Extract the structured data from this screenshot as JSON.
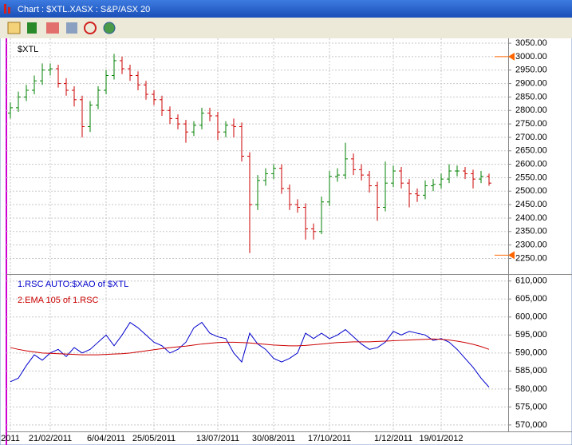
{
  "window": {
    "title": "Chart : $XTL.XASX : S&P/ASX 20"
  },
  "chart_data": [
    {
      "type": "ohlc",
      "title": "$XTL",
      "categories": [
        "2011",
        null,
        null,
        null,
        null,
        "21/02/2011",
        null,
        null,
        null,
        null,
        null,
        null,
        "6/04/2011",
        null,
        null,
        null,
        null,
        null,
        "25/05/2011",
        null,
        null,
        null,
        null,
        null,
        null,
        null,
        "13/07/2011",
        null,
        null,
        null,
        null,
        null,
        null,
        "30/08/2011",
        null,
        null,
        null,
        null,
        null,
        null,
        "17/10/2011",
        null,
        null,
        null,
        null,
        null,
        null,
        null,
        "1/12/2011",
        null,
        null,
        null,
        null,
        null,
        "19/01/2012",
        null,
        null,
        null,
        null,
        null,
        null
      ],
      "open": [
        2790,
        2810,
        2850,
        2875,
        2910,
        2950,
        2955,
        2900,
        2875,
        2840,
        2740,
        2820,
        2875,
        2930,
        2985,
        2955,
        2930,
        2895,
        2860,
        2840,
        2800,
        2770,
        2750,
        2720,
        2745,
        2790,
        2780,
        2720,
        2745,
        2740,
        2630,
        2450,
        2540,
        2565,
        2585,
        2510,
        2450,
        2440,
        2360,
        2350,
        2460,
        2555,
        2560,
        2620,
        2580,
        2560,
        2520,
        2440,
        2530,
        2575,
        2530,
        2490,
        2485,
        2520,
        2525,
        2545,
        2575,
        2575,
        2565,
        2545,
        2555
      ],
      "high": [
        2830,
        2870,
        2895,
        2930,
        2975,
        2975,
        2970,
        2920,
        2890,
        2855,
        2835,
        2890,
        2950,
        3010,
        3000,
        2970,
        2945,
        2910,
        2875,
        2855,
        2815,
        2785,
        2765,
        2760,
        2810,
        2810,
        2795,
        2760,
        2770,
        2755,
        2645,
        2560,
        2585,
        2600,
        2600,
        2525,
        2470,
        2455,
        2380,
        2480,
        2575,
        2585,
        2680,
        2640,
        2600,
        2575,
        2535,
        2610,
        2595,
        2590,
        2545,
        2510,
        2540,
        2545,
        2565,
        2600,
        2595,
        2590,
        2580,
        2575,
        2565
      ],
      "low": [
        2770,
        2795,
        2835,
        2860,
        2895,
        2930,
        2885,
        2855,
        2815,
        2700,
        2720,
        2805,
        2860,
        2915,
        2935,
        2910,
        2875,
        2840,
        2820,
        2780,
        2750,
        2730,
        2680,
        2705,
        2730,
        2760,
        2690,
        2700,
        2700,
        2610,
        2270,
        2430,
        2520,
        2545,
        2490,
        2430,
        2420,
        2320,
        2320,
        2340,
        2445,
        2535,
        2545,
        2560,
        2540,
        2495,
        2390,
        2425,
        2515,
        2510,
        2440,
        2460,
        2470,
        2500,
        2510,
        2530,
        2555,
        2545,
        2510,
        2530,
        2520
      ],
      "close": [
        2810,
        2850,
        2875,
        2910,
        2950,
        2955,
        2900,
        2875,
        2840,
        2740,
        2820,
        2875,
        2930,
        2985,
        2955,
        2930,
        2895,
        2860,
        2840,
        2800,
        2770,
        2750,
        2720,
        2745,
        2790,
        2780,
        2720,
        2745,
        2740,
        2630,
        2450,
        2540,
        2565,
        2585,
        2510,
        2450,
        2440,
        2360,
        2350,
        2460,
        2555,
        2560,
        2620,
        2580,
        2560,
        2520,
        2440,
        2530,
        2575,
        2530,
        2490,
        2485,
        2520,
        2525,
        2545,
        2575,
        2575,
        2565,
        2545,
        2555,
        2530
      ],
      "up_color": "#008000",
      "down_color": "#cc0000",
      "markers": [
        3000,
        2262
      ],
      "marker_color": "#ff6600",
      "ylim": [
        2195,
        3068
      ],
      "yticks": [
        {
          "value": 2250,
          "label": "2250.00"
        },
        {
          "value": 2300,
          "label": "2300.00"
        },
        {
          "value": 2350,
          "label": "2350.00"
        },
        {
          "value": 2400,
          "label": "2400.00"
        },
        {
          "value": 2450,
          "label": "2450.00"
        },
        {
          "value": 2500,
          "label": "2500.00"
        },
        {
          "value": 2550,
          "label": "2550.00"
        },
        {
          "value": 2600,
          "label": "2600.00"
        },
        {
          "value": 2650,
          "label": "2650.00"
        },
        {
          "value": 2700,
          "label": "2700.00"
        },
        {
          "value": 2750,
          "label": "2750.00"
        },
        {
          "value": 2800,
          "label": "2800.00"
        },
        {
          "value": 2850,
          "label": "2850.00"
        },
        {
          "value": 2900,
          "label": "2900.00"
        },
        {
          "value": 2950,
          "label": "2950.00"
        },
        {
          "value": 3000,
          "label": "3000.00"
        },
        {
          "value": 3050,
          "label": "3050.00"
        }
      ],
      "grid": true
    },
    {
      "type": "line",
      "series": [
        {
          "name": "1.RSC  AUTO:$XAO of $XTL",
          "color": "#0000cc",
          "values": [
            582000,
            583000,
            586500,
            589500,
            588000,
            590000,
            591000,
            589000,
            591500,
            590000,
            591000,
            593000,
            595000,
            592000,
            595000,
            598500,
            597000,
            595000,
            593000,
            592000,
            590000,
            591000,
            593000,
            597000,
            598500,
            595500,
            594500,
            594000,
            590000,
            587500,
            595500,
            592500,
            591000,
            588500,
            587500,
            588500,
            590000,
            595500,
            594000,
            595500,
            594000,
            595000,
            596500,
            594500,
            592500,
            591000,
            591500,
            593000,
            596000,
            595000,
            596000,
            595500,
            595000,
            593500,
            594000,
            593000,
            591000,
            588500,
            586000,
            583000,
            580500
          ]
        },
        {
          "name": "2.EMA 105  of 1.RSC",
          "color": "#cc0000",
          "values": [
            591500,
            591000,
            590600,
            590300,
            590000,
            589900,
            589800,
            589700,
            589600,
            589500,
            589500,
            589500,
            589600,
            589700,
            589800,
            590000,
            590300,
            590600,
            590900,
            591200,
            591500,
            591700,
            591900,
            592200,
            592500,
            592700,
            592900,
            593000,
            593000,
            592900,
            592800,
            592600,
            592400,
            592200,
            592100,
            592000,
            592000,
            592100,
            592300,
            592500,
            592700,
            592900,
            593000,
            593100,
            593100,
            593100,
            593200,
            593300,
            593400,
            593500,
            593600,
            593700,
            593800,
            593900,
            593800,
            593600,
            593300,
            592900,
            592400,
            591800,
            591000
          ]
        }
      ],
      "ylim": [
        568200,
        611500
      ],
      "yticks": [
        {
          "value": 570000,
          "label": "570,000"
        },
        {
          "value": 575000,
          "label": "575,000"
        },
        {
          "value": 580000,
          "label": "580,000"
        },
        {
          "value": 585000,
          "label": "585,000"
        },
        {
          "value": 590000,
          "label": "590,000"
        },
        {
          "value": 595000,
          "label": "595,000"
        },
        {
          "value": 600000,
          "label": "600,000"
        },
        {
          "value": 605000,
          "label": "605,000"
        },
        {
          "value": 610000,
          "label": "610,000"
        }
      ],
      "grid": true
    }
  ]
}
